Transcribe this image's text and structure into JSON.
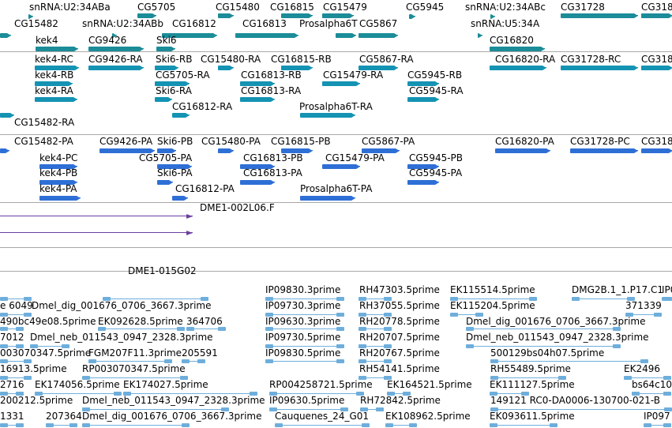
{
  "browser": {
    "colors": {
      "gene": "#1b8c98",
      "transcript": "#1493b3",
      "protein": "#2e6fd6",
      "genomic": "#6a3fa0",
      "est": "#6eaedc",
      "separator": "#a8a8a8"
    },
    "tracks": [
      {
        "name": "genes",
        "color_key": "gene",
        "features": [
          {
            "label": "snRNA:U2:34ABa"
          },
          {
            "label": "CG5705"
          },
          {
            "label": "CG15480"
          },
          {
            "label": "CG16815"
          },
          {
            "label": "CG15479"
          },
          {
            "label": "CG5945"
          },
          {
            "label": "snRNA:U2:34ABc"
          },
          {
            "label": "CG31728"
          },
          {
            "label": "CG318"
          },
          {
            "label": "CG15482"
          },
          {
            "label": "snRNA:U2:34ABb"
          },
          {
            "label": "CG16812"
          },
          {
            "label": "CG16813"
          },
          {
            "label": "Prosalpha6T"
          },
          {
            "label": "CG5867"
          },
          {
            "label": "snRNA:U5:34A"
          },
          {
            "label": "kek4"
          },
          {
            "label": "CG9426"
          },
          {
            "label": "Ski6"
          },
          {
            "label": "CG16820"
          }
        ]
      },
      {
        "name": "transcripts",
        "color_key": "transcript",
        "features": [
          {
            "label": "kek4-RC"
          },
          {
            "label": "CG9426-RA"
          },
          {
            "label": "Ski6-RB"
          },
          {
            "label": "CG15480-RA"
          },
          {
            "label": "CG16815-RB"
          },
          {
            "label": "CG5867-RA"
          },
          {
            "label": "CG16820-RA"
          },
          {
            "label": "CG31728-RC"
          },
          {
            "label": "CG318"
          },
          {
            "label": "kek4-RB"
          },
          {
            "label": "CG5705-RA"
          },
          {
            "label": "CG16813-RB"
          },
          {
            "label": "CG15479-RA"
          },
          {
            "label": "CG5945-RB"
          },
          {
            "label": "kek4-RA"
          },
          {
            "label": "Ski6-RA"
          },
          {
            "label": "CG16813-RA"
          },
          {
            "label": "CG5945-RA"
          },
          {
            "label": "CG16812-RA"
          },
          {
            "label": "Prosalpha6T-RA"
          },
          {
            "label": "CG15482-RA"
          }
        ]
      },
      {
        "name": "proteins",
        "color_key": "protein",
        "features": [
          {
            "label": "CG15482-PA"
          },
          {
            "label": "CG9426-PA"
          },
          {
            "label": "Ski6-PB"
          },
          {
            "label": "CG15480-PA"
          },
          {
            "label": "CG16815-PB"
          },
          {
            "label": "CG5867-PA"
          },
          {
            "label": "CG16820-PA"
          },
          {
            "label": "CG31728-PC"
          },
          {
            "label": "CG318"
          },
          {
            "label": "kek4-PC"
          },
          {
            "label": "CG5705-PA"
          },
          {
            "label": "CG16813-PB"
          },
          {
            "label": "CG15479-PA"
          },
          {
            "label": "CG5945-PB"
          },
          {
            "label": "kek4-PB"
          },
          {
            "label": "Ski6-PA"
          },
          {
            "label": "CG16813-PA"
          },
          {
            "label": "CG5945-PA"
          },
          {
            "label": "kek4-PA"
          },
          {
            "label": "CG16812-PA"
          },
          {
            "label": "Prosalpha6T-PA"
          }
        ]
      },
      {
        "name": "genomic-clones",
        "color_key": "genomic",
        "features": [
          {
            "label": "DME1-002L06.F"
          },
          {
            "label": "DME1-015G02"
          }
        ]
      },
      {
        "name": "est",
        "color_key": "est",
        "features": [
          {
            "label": "IP09830.3prime"
          },
          {
            "label": "RH47303.5prime"
          },
          {
            "label": "EK115514.5prime"
          },
          {
            "label": "DMG2B.1_1.P17.C1"
          },
          {
            "label": "IP0"
          },
          {
            "label": "e 6049"
          },
          {
            "label": "Dmel_dig_001676_0706_3667.3prime"
          },
          {
            "label": "IP09730.3prime"
          },
          {
            "label": "RH37055.5prime"
          },
          {
            "label": "EK115204.5prime"
          },
          {
            "label": "371339"
          },
          {
            "label": "490bc49e08.5prime"
          },
          {
            "label": "EK092628.5prime"
          },
          {
            "label": "364706"
          },
          {
            "label": "IP09630.3prime"
          },
          {
            "label": "RH20778.5prime"
          },
          {
            "label": "Dmel_dig_001676_0706_3667.3prime"
          },
          {
            "label": "7012"
          },
          {
            "label": "Dmel_neb_011543_0947_2328.3prime"
          },
          {
            "label": "IP09730.5prime"
          },
          {
            "label": "RH20707.5prime"
          },
          {
            "label": "Dmel_neb_011543_0947_2328.3prime"
          },
          {
            "label": "003070347.5prime"
          },
          {
            "label": "FGM207F11.3prime"
          },
          {
            "label": "205591"
          },
          {
            "label": "IP09830.5prime"
          },
          {
            "label": "RH20767.5prime"
          },
          {
            "label": "500129bs04h07.5prime"
          },
          {
            "label": "16913.5prime"
          },
          {
            "label": "RP003070347.5prime"
          },
          {
            "label": "RH54141.5prime"
          },
          {
            "label": "RH55489.5prime"
          },
          {
            "label": "EK2496"
          },
          {
            "label": "2716"
          },
          {
            "label": "EK174056.5prime"
          },
          {
            "label": "EK174027.5prime"
          },
          {
            "label": "RP004258721.5prime"
          },
          {
            "label": "EK164521.5prime"
          },
          {
            "label": "EK111127.5prime"
          },
          {
            "label": "bs64c10"
          },
          {
            "label": "200212.5prime"
          },
          {
            "label": "Dmel_neb_011543_0947_2328.3prime"
          },
          {
            "label": "IP09630.5prime"
          },
          {
            "label": "RH72842.5prime"
          },
          {
            "label": "149121 RC0-DA0006-130700-021-B"
          },
          {
            "label": "1331"
          },
          {
            "label": "207364"
          },
          {
            "label": "Dmel_dig_001676_0706_3667.3prime"
          },
          {
            "label": "Cauquenes_24_G01"
          },
          {
            "label": "EK108962.5prime"
          },
          {
            "label": "EK093611.5prime"
          },
          {
            "label": "IP097"
          }
        ]
      }
    ]
  }
}
